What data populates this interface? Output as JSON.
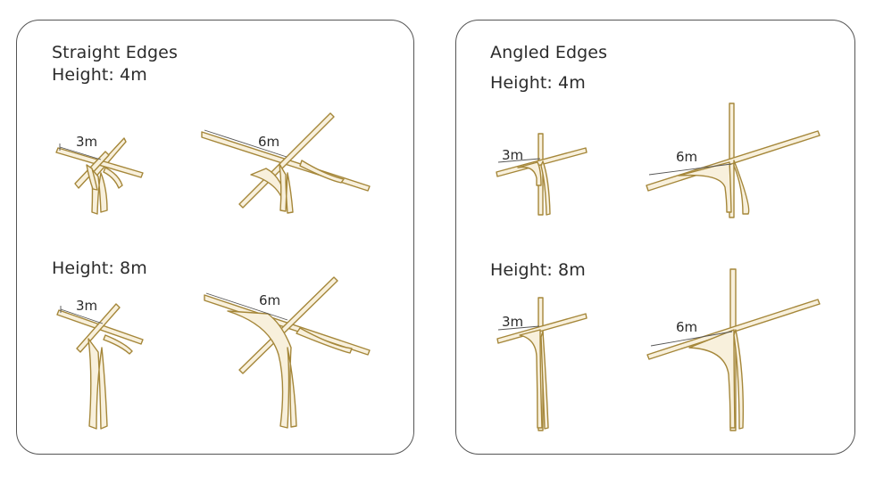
{
  "panels": {
    "left": {
      "title": "Straight Edges",
      "height_top": "Height: 4m",
      "height_bottom": "Height: 8m"
    },
    "right": {
      "title": "Angled Edges",
      "height_top": "Height: 4m",
      "height_bottom": "Height: 8m"
    }
  },
  "dimensions": {
    "small": "3m",
    "large": "6m"
  },
  "colors": {
    "structure_stroke": "#a5873a",
    "structure_fill": "#f8f0dc",
    "panel_border": "#555555",
    "text": "#2b2b2b"
  }
}
